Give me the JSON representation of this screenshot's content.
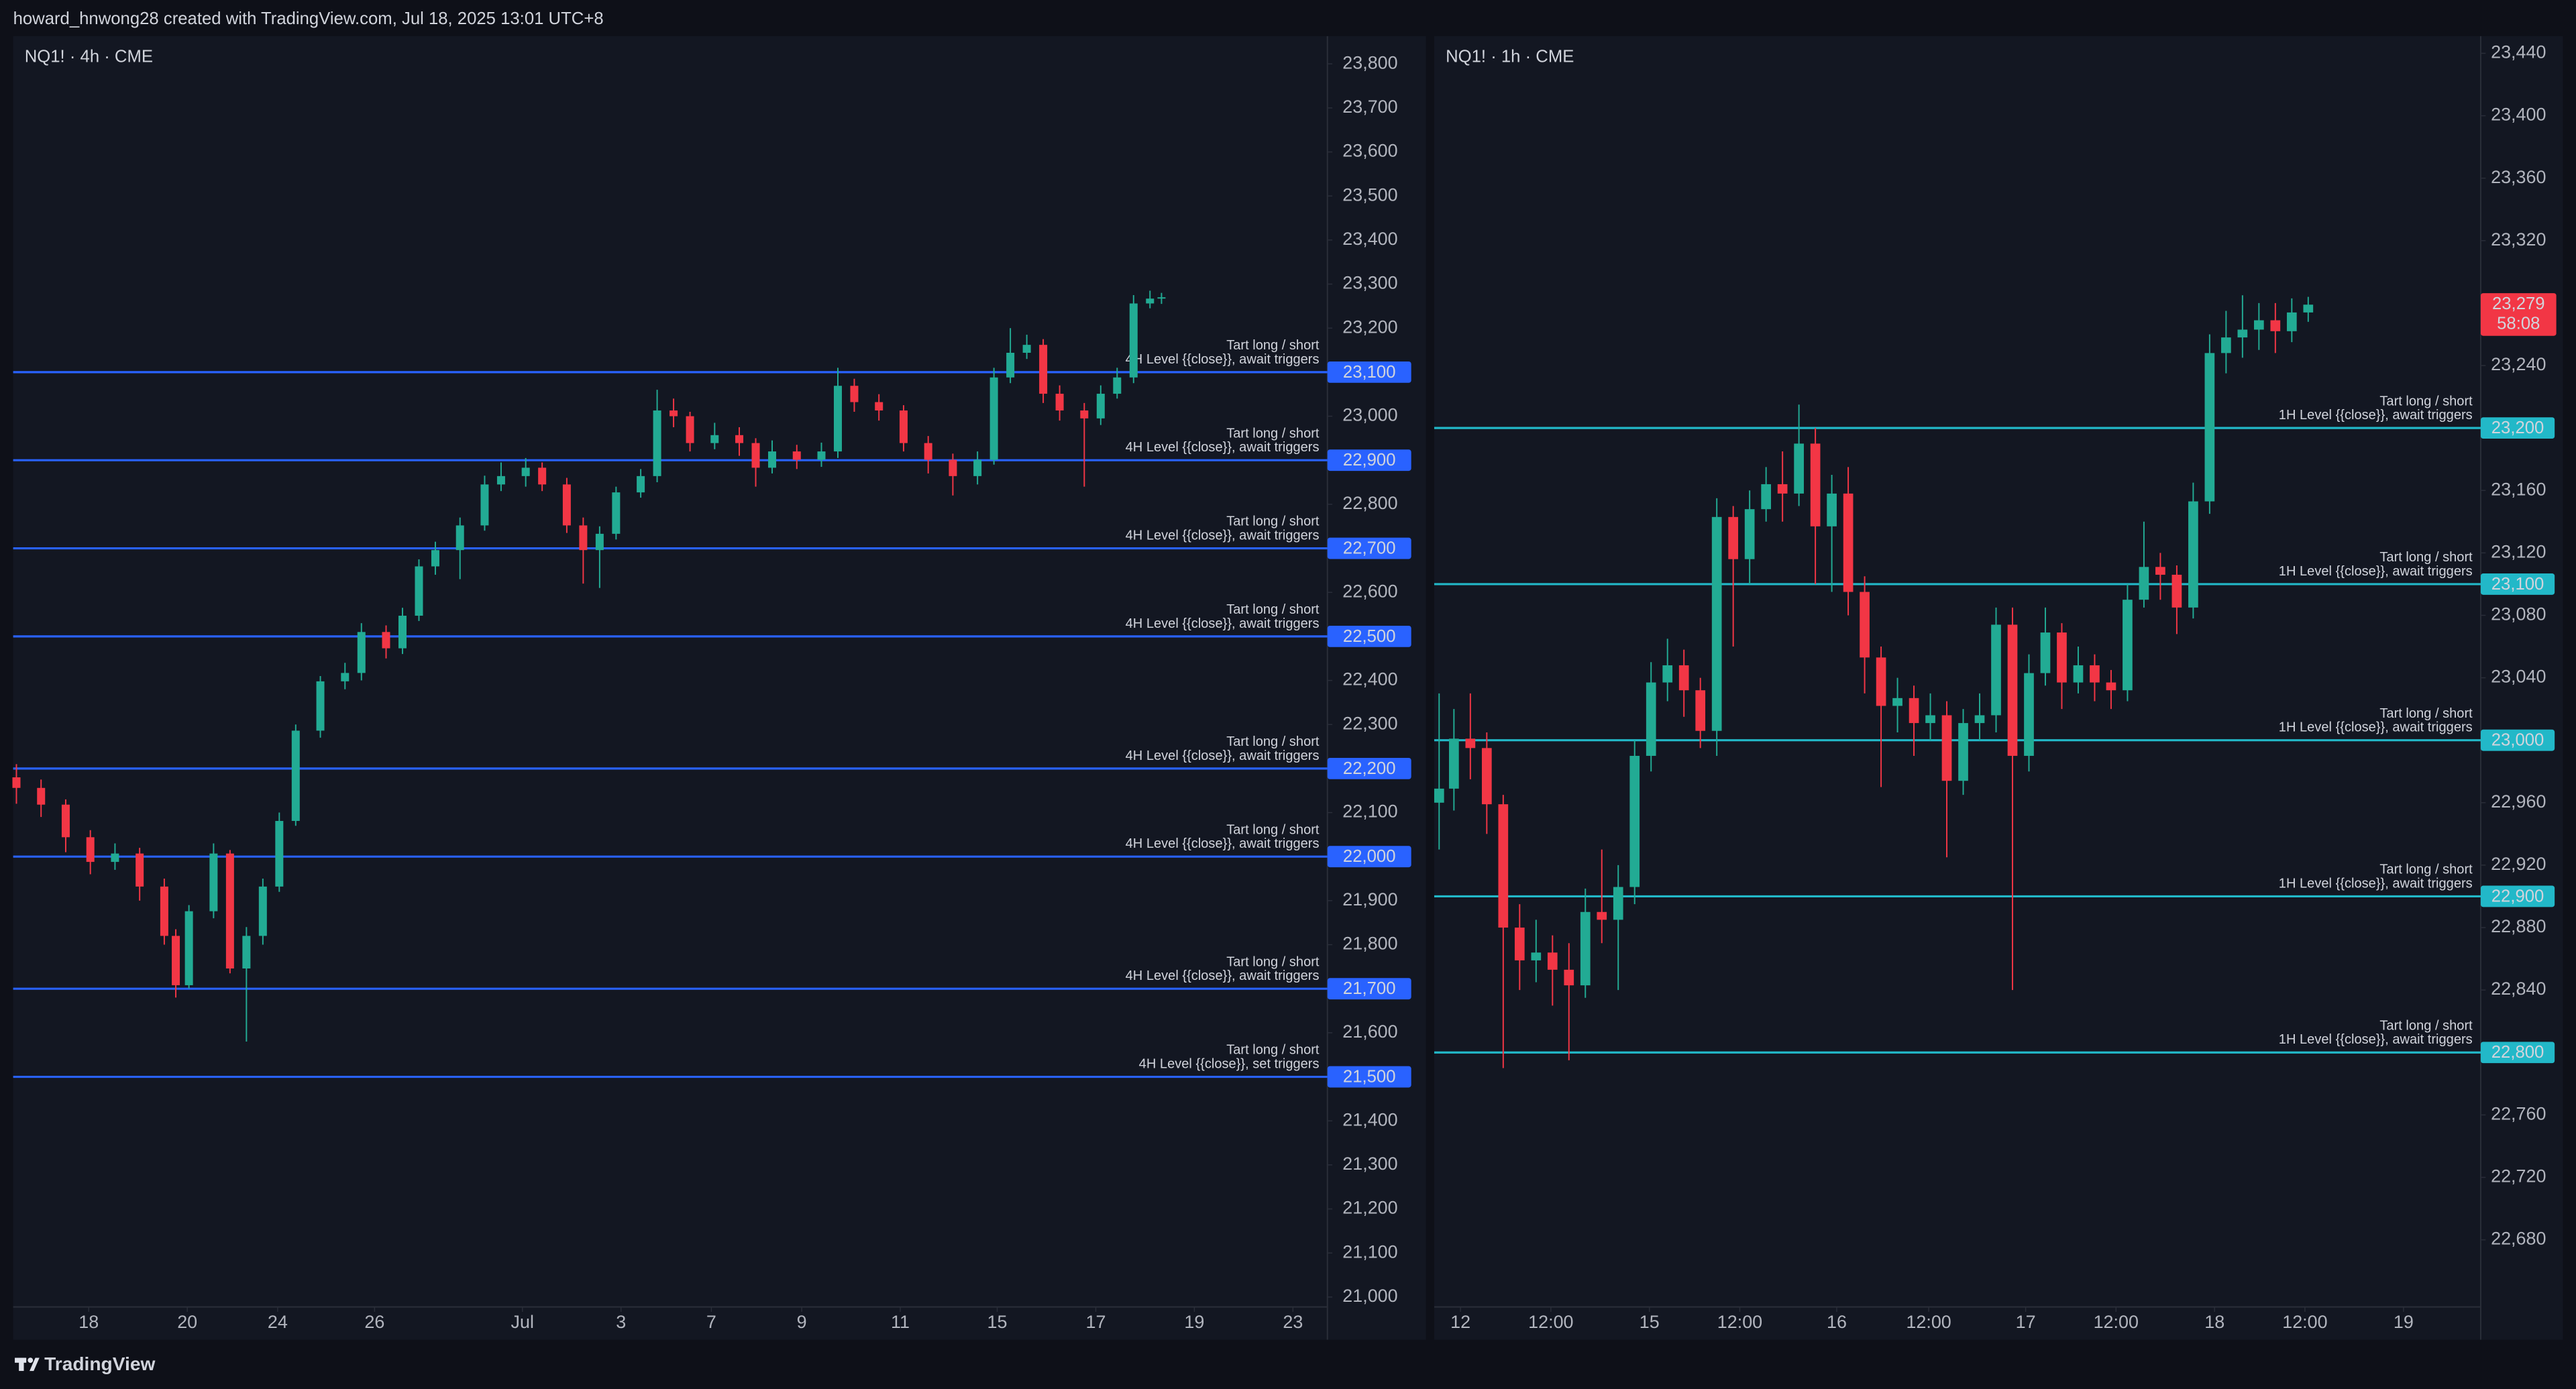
{
  "header": {
    "text": "howard_hnwong28 created with TradingView.com, Jul 18, 2025 13:01 UTC+8"
  },
  "footer": {
    "brand": "TradingView"
  },
  "chart_data": [
    {
      "type": "candlestick",
      "title": "NQ1! · 4h · CME",
      "up_color": "#22ab94",
      "down_color": "#f23645",
      "level_color": "#2962ff",
      "x": [
        2,
        17,
        32,
        47,
        62,
        77,
        92,
        99,
        107,
        122,
        132,
        142,
        152,
        162,
        172,
        187,
        202,
        212,
        227,
        237,
        247,
        257,
        272,
        287,
        297,
        312,
        322,
        337,
        347,
        357,
        367,
        382,
        392,
        402,
        412,
        427,
        442,
        452,
        462,
        477,
        492,
        502,
        512,
        527,
        542,
        557,
        572,
        587,
        597,
        607,
        617,
        627,
        637,
        652,
        662,
        672,
        682,
        692,
        699
      ],
      "open": [
        22180,
        22156,
        22118,
        22044,
        21988,
        22007,
        21932,
        21820,
        21708,
        21876,
        22007,
        21746,
        21820,
        21932,
        22081,
        22286,
        22398,
        22417,
        22510,
        22473,
        22547,
        22659,
        22696,
        22752,
        22845,
        22864,
        22883,
        22845,
        22752,
        22696,
        22733,
        22827,
        22864,
        23013,
        23000,
        22939,
        22957,
        22939,
        22883,
        22920,
        22901,
        22920,
        23069,
        23032,
        23013,
        22939,
        22901,
        22864,
        22901,
        23088,
        23144,
        23162,
        23051,
        23013,
        22995,
        23051,
        23088,
        23256,
        23267
      ],
      "high": [
        22210,
        22175,
        22130,
        22060,
        22030,
        22020,
        21950,
        21835,
        21890,
        22030,
        22015,
        21840,
        21950,
        22100,
        22300,
        22410,
        22440,
        22530,
        22525,
        22565,
        22675,
        22715,
        22770,
        22865,
        22895,
        22905,
        22895,
        22860,
        22770,
        22750,
        22840,
        22880,
        23060,
        23040,
        23010,
        22985,
        22975,
        22950,
        22945,
        22935,
        22940,
        23110,
        23085,
        23050,
        23025,
        22955,
        22915,
        22920,
        23110,
        23200,
        23185,
        23175,
        23070,
        23030,
        23070,
        23110,
        23275,
        23285,
        23280
      ],
      "low": [
        22120,
        22090,
        22010,
        21960,
        21970,
        21900,
        21800,
        21680,
        21700,
        21860,
        21735,
        21580,
        21800,
        21920,
        22070,
        22270,
        22380,
        22400,
        22450,
        22460,
        22535,
        22640,
        22630,
        22740,
        22830,
        22840,
        22830,
        22735,
        22620,
        22610,
        22720,
        22815,
        22850,
        22975,
        22920,
        22925,
        22910,
        22840,
        22870,
        22880,
        22885,
        22905,
        23010,
        22990,
        22920,
        22870,
        22820,
        22845,
        22890,
        23075,
        23130,
        23030,
        22990,
        22840,
        22980,
        23040,
        23075,
        23245,
        23255
      ],
      "close": [
        22156,
        22118,
        22044,
        21988,
        22007,
        21932,
        21820,
        21708,
        21876,
        22007,
        21746,
        21820,
        21932,
        22081,
        22286,
        22398,
        22417,
        22510,
        22473,
        22547,
        22659,
        22696,
        22752,
        22845,
        22864,
        22883,
        22845,
        22752,
        22696,
        22733,
        22827,
        22864,
        23013,
        23000,
        22939,
        22957,
        22939,
        22883,
        22920,
        22901,
        22920,
        23069,
        23032,
        23013,
        22939,
        22901,
        22864,
        22901,
        23088,
        23144,
        23162,
        23051,
        23013,
        22995,
        23051,
        23088,
        23256,
        23267,
        23270
      ],
      "xlim": [
        0,
        800
      ],
      "xticks": [
        {
          "value": 46,
          "label": "18"
        },
        {
          "value": 106,
          "label": "20"
        },
        {
          "value": 161,
          "label": "24"
        },
        {
          "value": 220,
          "label": "26"
        },
        {
          "value": 310,
          "label": "Jul"
        },
        {
          "value": 370,
          "label": "3"
        },
        {
          "value": 425,
          "label": "7"
        },
        {
          "value": 480,
          "label": "9"
        },
        {
          "value": 540,
          "label": "11"
        },
        {
          "value": 599,
          "label": "15"
        },
        {
          "value": 659,
          "label": "17"
        },
        {
          "value": 719,
          "label": "19"
        },
        {
          "value": 779,
          "label": "23"
        }
      ],
      "ylim": [
        20903,
        23863
      ],
      "yticks": [
        {
          "value": 21000,
          "label": "21,000"
        },
        {
          "value": 21100,
          "label": "21,100"
        },
        {
          "value": 21200,
          "label": "21,200"
        },
        {
          "value": 21300,
          "label": "21,300"
        },
        {
          "value": 21400,
          "label": "21,400"
        },
        {
          "value": 21600,
          "label": "21,600"
        },
        {
          "value": 21800,
          "label": "21,800"
        },
        {
          "value": 21900,
          "label": "21,900"
        },
        {
          "value": 22100,
          "label": "22,100"
        },
        {
          "value": 22300,
          "label": "22,300"
        },
        {
          "value": 22400,
          "label": "22,400"
        },
        {
          "value": 22600,
          "label": "22,600"
        },
        {
          "value": 22800,
          "label": "22,800"
        },
        {
          "value": 23000,
          "label": "23,000"
        },
        {
          "value": 23200,
          "label": "23,200"
        },
        {
          "value": 23300,
          "label": "23,300"
        },
        {
          "value": 23400,
          "label": "23,400"
        },
        {
          "value": 23500,
          "label": "23,500"
        },
        {
          "value": 23600,
          "label": "23,600"
        },
        {
          "value": 23700,
          "label": "23,700"
        },
        {
          "value": 23800,
          "label": "23,800"
        }
      ],
      "levels": [
        {
          "value": 23100,
          "label": "23,100",
          "line1": "Tart long / short",
          "line2": "4H Level {{close}}, await triggers"
        },
        {
          "value": 22900,
          "label": "22,900",
          "line1": "Tart long / short",
          "line2": "4H Level {{close}}, await triggers"
        },
        {
          "value": 22700,
          "label": "22,700",
          "line1": "Tart long / short",
          "line2": "4H Level {{close}}, await triggers"
        },
        {
          "value": 22500,
          "label": "22,500",
          "line1": "Tart long / short",
          "line2": "4H Level {{close}}, await triggers"
        },
        {
          "value": 22200,
          "label": "22,200",
          "line1": "Tart long / short",
          "line2": "4H Level {{close}}, await triggers"
        },
        {
          "value": 22000,
          "label": "22,000",
          "line1": "Tart long / short",
          "line2": "4H Level {{close}}, await triggers"
        },
        {
          "value": 21700,
          "label": "21,700",
          "line1": "Tart long / short",
          "line2": "4H Level {{close}}, await triggers"
        },
        {
          "value": 21500,
          "label": "21,500",
          "line1": "Tart long / short",
          "line2": "4H Level {{close}}, set triggers"
        }
      ]
    },
    {
      "type": "candlestick",
      "title": "NQ1! · 1h · CME",
      "up_color": "#22ab94",
      "down_color": "#f23645",
      "level_color": "#22b8c8",
      "x": [
        3,
        12,
        22,
        32,
        42,
        52,
        62,
        72,
        82,
        92,
        102,
        112,
        122,
        132,
        142,
        152,
        162,
        172,
        182,
        192,
        202,
        212,
        222,
        232,
        242,
        252,
        262,
        272,
        282,
        292,
        302,
        312,
        322,
        332,
        342,
        352,
        362,
        372,
        382,
        392,
        402,
        412,
        422,
        432,
        442,
        452,
        462,
        472,
        482,
        492,
        502,
        512,
        522,
        532
      ],
      "open": [
        22960,
        22969,
        23001,
        22995,
        22959,
        22880,
        22859,
        22864,
        22853,
        22843,
        22890,
        22885,
        22906,
        22990,
        23037,
        23048,
        23032,
        23006,
        23143,
        23116,
        23148,
        23164,
        23158,
        23190,
        23137,
        23158,
        23095,
        23053,
        23022,
        23027,
        23011,
        23016,
        22974,
        23011,
        23016,
        23074,
        22990,
        23043,
        23069,
        23037,
        23048,
        23037,
        23032,
        23090,
        23111,
        23106,
        23085,
        23153,
        23248,
        23258,
        23263,
        23269,
        23262,
        23274
      ],
      "high": [
        23030,
        23020,
        23030,
        23005,
        22965,
        22895,
        22885,
        22875,
        22870,
        22905,
        22930,
        22920,
        23000,
        23050,
        23065,
        23058,
        23040,
        23155,
        23150,
        23160,
        23175,
        23185,
        23215,
        23200,
        23170,
        23175,
        23105,
        23060,
        23040,
        23035,
        23030,
        23025,
        23020,
        23030,
        23085,
        23085,
        23055,
        23085,
        23075,
        23060,
        23055,
        23045,
        23100,
        23140,
        23120,
        23112,
        23165,
        23260,
        23275,
        23285,
        23280,
        23280,
        23283,
        23284
      ],
      "low": [
        22930,
        22955,
        22975,
        22940,
        22790,
        22840,
        22845,
        22830,
        22795,
        22835,
        22870,
        22840,
        22895,
        22980,
        23025,
        23015,
        22995,
        22990,
        23060,
        23100,
        23140,
        23140,
        23150,
        23100,
        23095,
        23080,
        23030,
        22970,
        23005,
        22990,
        23000,
        22925,
        22965,
        23000,
        23005,
        22840,
        22980,
        23035,
        23020,
        23030,
        23025,
        23020,
        23025,
        23085,
        23090,
        23068,
        23078,
        23145,
        23235,
        23245,
        23250,
        23248,
        23255,
        23268
      ],
      "close": [
        22969,
        23001,
        22995,
        22959,
        22880,
        22859,
        22864,
        22853,
        22843,
        22890,
        22885,
        22906,
        22990,
        23037,
        23048,
        23032,
        23006,
        23143,
        23116,
        23148,
        23164,
        23158,
        23190,
        23137,
        23158,
        23095,
        23053,
        23022,
        23027,
        23011,
        23016,
        22974,
        23011,
        23016,
        23074,
        22990,
        23043,
        23069,
        23037,
        23048,
        23037,
        23032,
        23090,
        23111,
        23106,
        23085,
        23153,
        23248,
        23258,
        23263,
        23269,
        23262,
        23274,
        23279
      ],
      "xlim": [
        0,
        637
      ],
      "xticks": [
        {
          "value": 16,
          "label": "12"
        },
        {
          "value": 71,
          "label": "12:00"
        },
        {
          "value": 131,
          "label": "15"
        },
        {
          "value": 186,
          "label": "12:00"
        },
        {
          "value": 245,
          "label": "16"
        },
        {
          "value": 301,
          "label": "12:00"
        },
        {
          "value": 360,
          "label": "17"
        },
        {
          "value": 415,
          "label": "12:00"
        },
        {
          "value": 475,
          "label": "18"
        },
        {
          "value": 530,
          "label": "12:00"
        },
        {
          "value": 590,
          "label": "19"
        }
      ],
      "ylim": [
        22616,
        23451
      ],
      "yticks": [
        {
          "value": 22680,
          "label": "22,680"
        },
        {
          "value": 22720,
          "label": "22,720"
        },
        {
          "value": 22760,
          "label": "22,760"
        },
        {
          "value": 22840,
          "label": "22,840"
        },
        {
          "value": 22880,
          "label": "22,880"
        },
        {
          "value": 22920,
          "label": "22,920"
        },
        {
          "value": 22960,
          "label": "22,960"
        },
        {
          "value": 23040,
          "label": "23,040"
        },
        {
          "value": 23080,
          "label": "23,080"
        },
        {
          "value": 23120,
          "label": "23,120"
        },
        {
          "value": 23160,
          "label": "23,160"
        },
        {
          "value": 23240,
          "label": "23,240"
        },
        {
          "value": 23320,
          "label": "23,320"
        },
        {
          "value": 23360,
          "label": "23,360"
        },
        {
          "value": 23400,
          "label": "23,400"
        },
        {
          "value": 23440,
          "label": "23,440"
        }
      ],
      "levels": [
        {
          "value": 23200,
          "label": "23,200",
          "line1": "Tart long / short",
          "line2": "1H Level {{close}}, await triggers"
        },
        {
          "value": 23100,
          "label": "23,100",
          "line1": "Tart long / short",
          "line2": "1H Level {{close}}, await triggers"
        },
        {
          "value": 23000,
          "label": "23,000",
          "line1": "Tart long / short",
          "line2": "1H Level {{close}}, await triggers"
        },
        {
          "value": 22900,
          "label": "22,900",
          "line1": "Tart long / short",
          "line2": "1H Level {{close}}, await triggers"
        },
        {
          "value": 22800,
          "label": "22,800",
          "line1": "Tart long / short",
          "line2": "1H Level {{close}}, await triggers"
        }
      ],
      "last_price": {
        "value": 23279,
        "label": "23,279"
      },
      "countdown": "58:08",
      "last_price_color": "#f23645"
    }
  ]
}
